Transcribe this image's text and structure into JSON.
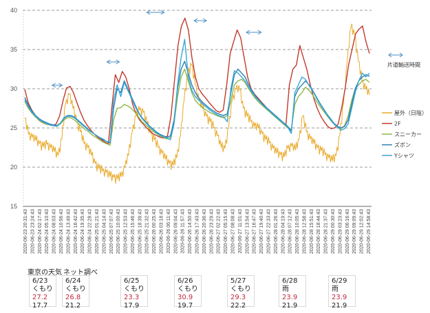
{
  "chart_data": {
    "type": "line",
    "title": "",
    "xlabel": "",
    "ylabel": "",
    "ylim": [
      15,
      40
    ],
    "yticks": [
      15,
      20,
      25,
      30,
      35,
      40
    ],
    "grid": true,
    "legend_position": "right",
    "x_start": "2020-06-23 20:31:43",
    "x_end": "2020-06-29 14:58:43",
    "xtick_labels": [
      "2020-06-23 20:31:43",
      "2020-06-23 23:24:43",
      "2020-06-24 02:17:43",
      "2020-06-24 05:10:43",
      "2020-06-24 08:03:43",
      "2020-06-24 10:56:43",
      "2020-06-24 13:49:43",
      "2020-06-24 16:42:43",
      "2020-06-24 19:35:43",
      "2020-06-24 22:28:43",
      "2020-06-25 01:21:43",
      "2020-06-25 04:14:43",
      "2020-06-25 07:07:43",
      "2020-06-25 10:00:43",
      "2020-06-25 12:53:43",
      "2020-06-25 15:46:43",
      "2020-06-25 18:39:43",
      "2020-06-25 21:32:43",
      "2020-06-26 00:25:43",
      "2020-06-26 03:18:43",
      "2020-06-26 06:11:43",
      "2020-06-26 09:04:43",
      "2020-06-26 11:57:43",
      "2020-06-26 14:50:43",
      "2020-06-26 17:43:43",
      "2020-06-26 20:36:43",
      "2020-06-26 23:29:43",
      "2020-06-27 02:22:43",
      "2020-06-27 05:15:43",
      "2020-06-27 08:08:43",
      "2020-06-27 11:01:43",
      "2020-06-27 13:54:43",
      "2020-06-27 16:47:43",
      "2020-06-27 19:40:43",
      "2020-06-27 22:33:43",
      "2020-06-28 01:26:43",
      "2020-06-28 04:19:43",
      "2020-06-28 07:12:43",
      "2020-06-28 10:05:43",
      "2020-06-28 12:58:43",
      "2020-06-28 15:51:43",
      "2020-06-28 18:44:43",
      "2020-06-28 21:37:43",
      "2020-06-29 00:30:43",
      "2020-06-29 03:23:43",
      "2020-06-29 06:16:43",
      "2020-06-29 09:09:43",
      "2020-06-29 12:02:43",
      "2020-06-29 14:58:43"
    ],
    "x_hours": [
      0,
      2,
      4,
      6,
      8,
      10,
      12,
      14,
      16,
      18,
      20,
      22,
      24,
      26,
      28,
      30,
      32,
      34,
      36,
      38,
      40,
      42,
      44,
      46,
      48,
      50,
      52,
      54,
      56,
      58,
      60,
      62,
      64,
      66,
      68,
      70,
      72,
      74,
      76,
      78,
      80,
      82,
      84,
      86,
      88,
      90,
      92,
      94,
      96,
      98,
      100,
      102,
      104,
      106,
      108,
      110,
      112,
      114,
      116,
      118,
      120,
      122,
      124,
      126,
      128,
      130,
      132,
      134,
      136,
      138
    ],
    "series": [
      {
        "name": "屋外（日陰）",
        "color": "#e8a826",
        "values": [
          26.2,
          24.2,
          23.8,
          23.4,
          23.0,
          22.6,
          22.9,
          22.5,
          22.0,
          21.5,
          23.6,
          28.0,
          29.3,
          27.5,
          26.0,
          24.5,
          23.0,
          22.5,
          21.5,
          20.5,
          19.8,
          19.5,
          19.3,
          18.8,
          18.7,
          18.5,
          18.8,
          20.0,
          21.5,
          24.5,
          26.5,
          27.3,
          27.0,
          25.5,
          24.3,
          23.5,
          22.5,
          21.8,
          21.0,
          20.5,
          20.2,
          21.2,
          24.0,
          28.5,
          32.0,
          33.0,
          30.5,
          28.5,
          27.5,
          26.5,
          25.8,
          25.0,
          24.0,
          22.5,
          22.4,
          25.0,
          28.5,
          30.0,
          29.8,
          27.5,
          26.5,
          25.8,
          25.2,
          25.0,
          24.3,
          23.5,
          23.1,
          22.4,
          21.8,
          21.6
        ],
        "values_tail": [
          21.3,
          22.4,
          22.7,
          22.2,
          23.5,
          26.5,
          24.5,
          23.6,
          23.0,
          22.5,
          22.1,
          21.6,
          21.2,
          20.8,
          21.5,
          24.0,
          28.0,
          33.5,
          37.8,
          37.0,
          33.5,
          31.0,
          30.0,
          29.2
        ]
      },
      {
        "name": "2F",
        "color": "#c0392b",
        "values": [
          29.9,
          28.2,
          27.3,
          26.6,
          26.0,
          25.7,
          25.5,
          25.4,
          25.3,
          25.5,
          26.5,
          28.5,
          30.1,
          30.3,
          29.5,
          28.2,
          27.0,
          26.0,
          25.3,
          24.7,
          24.2,
          23.8,
          23.5,
          23.2,
          23.0,
          27.5,
          31.8,
          30.8,
          32.2,
          31.5,
          30.0,
          28.0,
          26.8,
          26.0,
          25.5,
          25.0,
          24.6,
          24.2,
          24.0,
          23.8,
          23.7,
          24.0,
          26.5,
          31.0,
          35.5,
          38.0,
          39.0,
          37.5,
          34.0,
          31.5,
          30.0,
          29.3,
          28.8,
          28.2,
          27.7,
          27.2,
          27.0,
          27.3,
          30.5,
          34.5,
          36.0,
          37.5,
          36.5,
          34.0,
          31.5,
          30.0,
          29.3,
          28.8,
          28.3,
          27.8
        ],
        "values_tail": [
          27.3,
          26.9,
          26.5,
          26.0,
          25.7,
          25.3,
          30.5,
          32.5,
          33.0,
          35.5,
          34.0,
          32.5,
          30.5,
          28.8,
          27.5,
          26.5,
          25.8,
          25.2,
          24.9,
          25.0,
          25.5,
          27.5,
          30.0,
          33.0,
          35.0,
          37.0,
          37.6,
          38.0,
          36.0,
          34.5
        ]
      },
      {
        "name": "スニーカー",
        "color": "#8db84a",
        "values": [
          28.4,
          27.5,
          26.9,
          26.4,
          26.0,
          25.7,
          25.5,
          25.4,
          25.3,
          25.2,
          25.5,
          26.0,
          26.3,
          26.3,
          26.0,
          25.6,
          25.2,
          24.8,
          24.5,
          24.1,
          23.8,
          23.5,
          23.2,
          23.0,
          22.8,
          26.0,
          27.5,
          27.6,
          28.0,
          27.8,
          27.5,
          27.0,
          26.4,
          25.8,
          25.4,
          25.0,
          24.6,
          24.3,
          24.0,
          23.8,
          23.6,
          23.8,
          25.5,
          29.0,
          31.5,
          32.5,
          31.0,
          29.5,
          28.5,
          28.0,
          27.6,
          27.3,
          27.0,
          26.8,
          26.6,
          26.4,
          26.3,
          26.6,
          28.5,
          30.5,
          31.0,
          31.2,
          30.8,
          30.0,
          29.3,
          28.7,
          28.2,
          27.8,
          27.4,
          27.0
        ],
        "values_tail": [
          26.6,
          26.2,
          25.8,
          25.4,
          25.0,
          24.8,
          28.0,
          29.0,
          29.5,
          30.2,
          29.8,
          29.2,
          28.5,
          27.8,
          27.2,
          26.6,
          26.0,
          25.5,
          25.1,
          24.9,
          25.3,
          26.5,
          28.5,
          30.0,
          30.5,
          31.0,
          31.2,
          30.8
        ]
      },
      {
        "name": "ズボン",
        "color": "#2a7fb0",
        "values": [
          28.9,
          27.9,
          27.2,
          26.6,
          26.2,
          25.9,
          25.7,
          25.5,
          25.4,
          25.3,
          25.6,
          26.2,
          26.5,
          26.5,
          26.3,
          25.9,
          25.5,
          25.1,
          24.7,
          24.4,
          24.1,
          23.8,
          23.5,
          23.3,
          23.1,
          27.5,
          30.0,
          29.5,
          31.0,
          30.0,
          29.0,
          28.0,
          27.0,
          26.3,
          25.8,
          25.3,
          24.9,
          24.5,
          24.2,
          24.0,
          23.8,
          24.0,
          26.0,
          30.0,
          32.5,
          33.5,
          32.0,
          30.5,
          29.5,
          28.8,
          28.3,
          27.9,
          27.5,
          27.2,
          26.9,
          26.7,
          26.6,
          26.8,
          29.5,
          31.8,
          32.5,
          32.0,
          31.5,
          30.5,
          29.7,
          29.0,
          28.5,
          28.0,
          27.6,
          27.2
        ],
        "values_tail": [
          26.8,
          26.4,
          26.0,
          25.6,
          25.2,
          24.6,
          29.0,
          30.0,
          30.5,
          31.0,
          30.5,
          29.8,
          29.0,
          28.2,
          27.5,
          26.8,
          26.2,
          25.6,
          25.2,
          25.0,
          25.2,
          26.0,
          28.0,
          30.0,
          31.0,
          31.5,
          31.8,
          31.6
        ]
      },
      {
        "name": "Yシャツ",
        "color": "#3aa6d8",
        "values": [
          28.6,
          27.7,
          27.0,
          26.5,
          26.1,
          25.8,
          25.6,
          25.4,
          25.3,
          25.2,
          25.6,
          26.3,
          26.6,
          26.6,
          26.4,
          26.0,
          25.6,
          25.2,
          24.8,
          24.4,
          24.1,
          23.8,
          23.6,
          23.3,
          23.2,
          28.5,
          30.5,
          29.0,
          30.8,
          29.8,
          28.8,
          27.8,
          26.9,
          26.2,
          25.7,
          25.2,
          24.8,
          24.4,
          24.1,
          23.9,
          23.7,
          23.5,
          25.5,
          30.5,
          34.0,
          36.3,
          31.5,
          29.8,
          29.0,
          28.5,
          28.1,
          27.7,
          27.3,
          27.0,
          26.7,
          26.5,
          26.4,
          25.8,
          30.0,
          32.3,
          32.0,
          31.5,
          31.0,
          30.2,
          29.5,
          28.9,
          28.4,
          27.9,
          27.5,
          27.1
        ],
        "values_tail": [
          26.7,
          26.3,
          25.9,
          25.5,
          25.1,
          24.3,
          29.5,
          30.5,
          31.5,
          31.2,
          30.4,
          29.7,
          28.9,
          28.1,
          27.4,
          26.7,
          26.1,
          25.5,
          25.1,
          24.7,
          24.9,
          25.5,
          27.5,
          29.5,
          31.0,
          32.0,
          31.5,
          32.0
        ]
      }
    ],
    "annotations": [
      {
        "type": "double-arrow",
        "label": "片道輸送時間",
        "meaning": "legend for arrows"
      }
    ],
    "arrow_spans_hours": [
      [
        11,
        15
      ],
      [
        33,
        38
      ],
      [
        49,
        56
      ],
      [
        68,
        73
      ],
      [
        89,
        95
      ]
    ]
  },
  "legend": {
    "arrow_label": "片道輸送時間",
    "items": [
      "屋外（日陰）",
      "2F",
      "スニーカー",
      "ズボン",
      "Yシャツ"
    ]
  },
  "weather": {
    "header_left": "東京の天気",
    "header_right": "ネット調べ",
    "days": [
      {
        "date": "6/23",
        "cond": "くもり",
        "high": "27.2",
        "low": "17.7"
      },
      {
        "date": "6/24",
        "cond": "くもり",
        "high": "26.8",
        "low": "21.2"
      },
      {
        "date": "6/25",
        "cond": "くもり",
        "high": "23.3",
        "low": "17.9"
      },
      {
        "date": "6/26",
        "cond": "くもり",
        "high": "30.9",
        "low": "19.7"
      },
      {
        "date": "5/27",
        "cond": "くもり",
        "high": "29.3",
        "low": "22.2"
      },
      {
        "date": "6/28",
        "cond": "雨",
        "high": "23.9",
        "low": "21.9"
      },
      {
        "date": "6/29",
        "cond": "雨",
        "high": "23.9",
        "low": "21.9"
      }
    ]
  }
}
